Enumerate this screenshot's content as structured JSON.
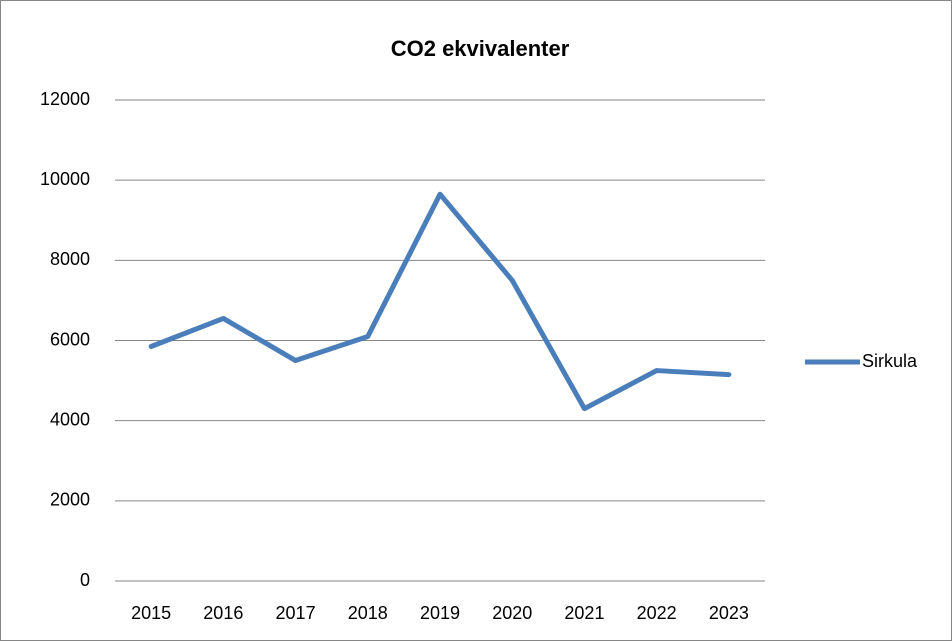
{
  "chart_data": {
    "type": "line",
    "title": "CO2 ekvivalenter",
    "categories": [
      "2015",
      "2016",
      "2017",
      "2018",
      "2019",
      "2020",
      "2021",
      "2022",
      "2023"
    ],
    "series": [
      {
        "name": "Sirkula",
        "color": "#4a7ebb",
        "values": [
          5850,
          6550,
          5500,
          6100,
          9650,
          7500,
          4300,
          5250,
          5150
        ]
      }
    ],
    "ylim": [
      0,
      12000
    ],
    "yticks": [
      0,
      2000,
      4000,
      6000,
      8000,
      10000,
      12000
    ],
    "grid": true,
    "legend": "right"
  }
}
